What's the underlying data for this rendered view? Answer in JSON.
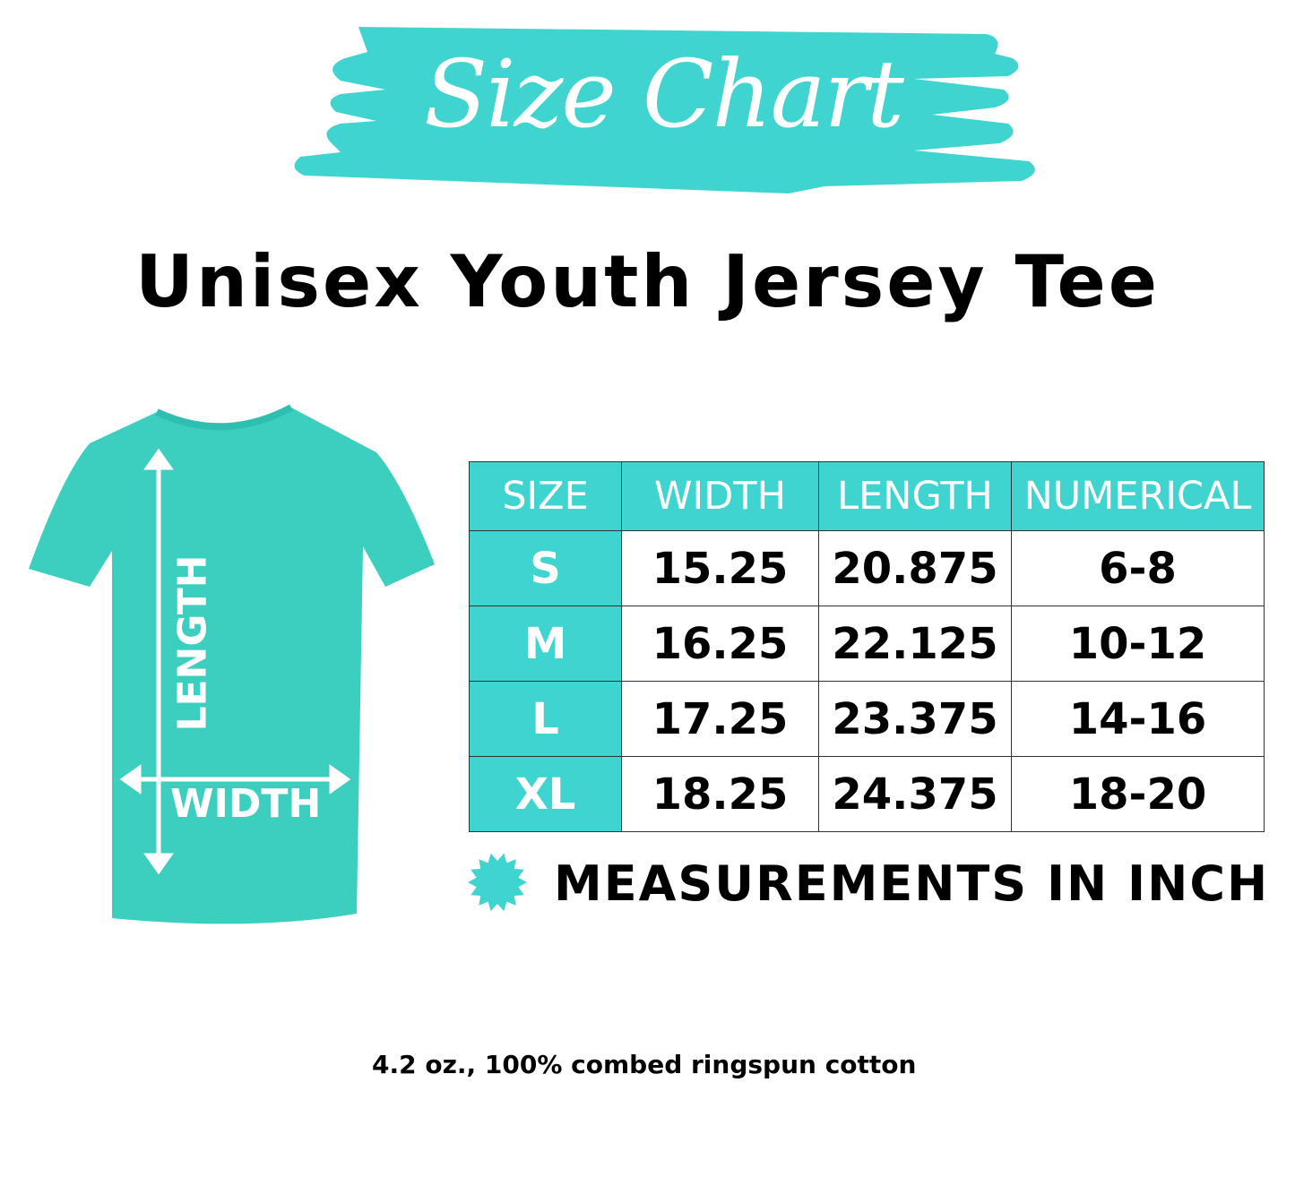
{
  "colors": {
    "accent": "#3fd4cf",
    "shirt": "#3ccfbf"
  },
  "banner": {
    "title": "Size Chart"
  },
  "title": "Unisex Youth Jersey Tee",
  "diagram": {
    "length_label": "LENGTH",
    "width_label": "WIDTH"
  },
  "table": {
    "headers": [
      "SIZE",
      "WIDTH",
      "LENGTH",
      "NUMERICAL"
    ],
    "rows": [
      [
        "S",
        "15.25",
        "20.875",
        "6-8"
      ],
      [
        "M",
        "16.25",
        "22.125",
        "10-12"
      ],
      [
        "L",
        "17.25",
        "23.375",
        "14-16"
      ],
      [
        "XL",
        "18.25",
        "24.375",
        "18-20"
      ]
    ]
  },
  "note": {
    "icon": "starburst-icon",
    "text": "MEASUREMENTS IN INCH"
  },
  "fabric": "4.2 oz., 100% combed ringspun cotton"
}
